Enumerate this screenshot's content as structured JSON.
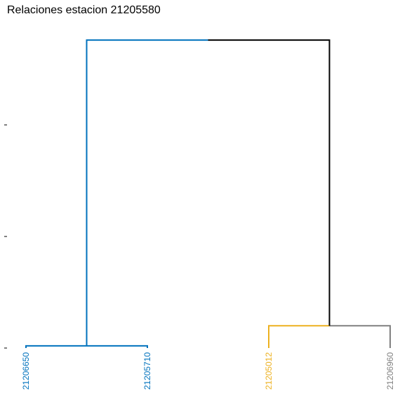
{
  "chart_data": {
    "type": "dendrogram",
    "title": "Relaciones estacion 21205580",
    "leaves": [
      {
        "label": "21206650",
        "color": "#0072BD"
      },
      {
        "label": "21205710",
        "color": "#0072BD"
      },
      {
        "label": "21205012",
        "color": "#EDB120"
      },
      {
        "label": "21206960",
        "color": "#808080"
      }
    ],
    "y_ticks": [
      0,
      0.5,
      1.0
    ],
    "ylim": [
      0,
      1.3
    ],
    "merges": [
      {
        "left": 0,
        "right": 1,
        "height": 0.01,
        "color": "#0072BD"
      },
      {
        "left": 2,
        "right": 3,
        "height": 0.1,
        "color_left": "#EDB120",
        "color_right": "#808080"
      },
      {
        "left": "m0",
        "right": "m1",
        "height": 1.38,
        "color_left": "#0072BD",
        "color_right": "#000000"
      }
    ],
    "show_tick_labels": false
  }
}
